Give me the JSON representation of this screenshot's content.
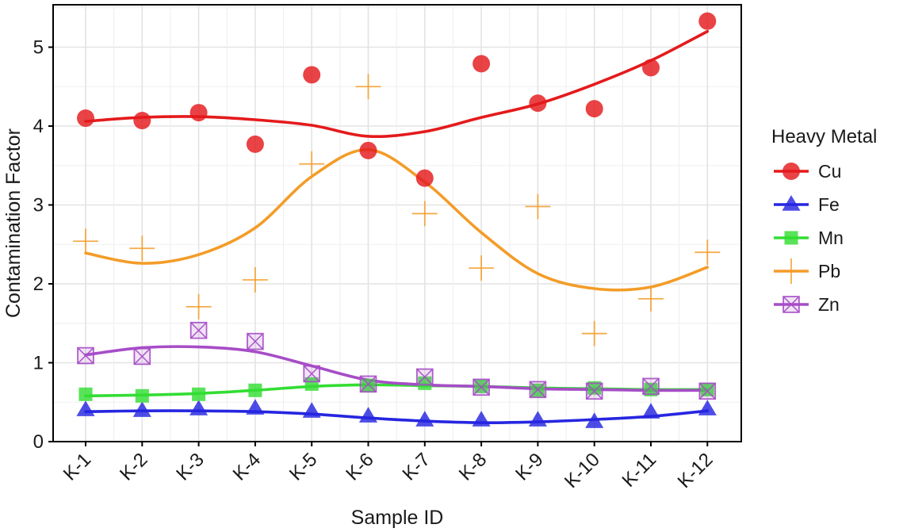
{
  "chart_data": {
    "type": "scatter",
    "title": "",
    "xlabel": "Sample ID",
    "ylabel": "Contamination Factor",
    "categories": [
      "K-1",
      "K-2",
      "K-3",
      "K-4",
      "K-5",
      "K-6",
      "K-7",
      "K-8",
      "K-9",
      "K-10",
      "K-11",
      "K-12"
    ],
    "ylim": [
      0,
      5.5
    ],
    "yticks": [
      0,
      1,
      2,
      3,
      4,
      5
    ],
    "grid": true,
    "legend_title": "Heavy Metal",
    "legend_position": "right",
    "series": [
      {
        "name": "Cu",
        "color": "#e41a1c",
        "marker": "circle",
        "values": [
          4.1,
          4.07,
          4.17,
          3.77,
          4.65,
          3.69,
          3.34,
          4.79,
          4.29,
          4.22,
          4.74,
          5.33
        ],
        "smooth": [
          4.06,
          4.11,
          4.12,
          4.08,
          4.01,
          3.87,
          3.93,
          4.11,
          4.28,
          4.53,
          4.83,
          5.2
        ]
      },
      {
        "name": "Fe",
        "color": "#2626e0",
        "marker": "triangle",
        "values": [
          0.4,
          0.39,
          0.41,
          0.42,
          0.38,
          0.32,
          0.27,
          0.27,
          0.27,
          0.25,
          0.37,
          0.41
        ],
        "smooth": [
          0.38,
          0.39,
          0.39,
          0.38,
          0.35,
          0.3,
          0.26,
          0.24,
          0.25,
          0.28,
          0.32,
          0.39
        ]
      },
      {
        "name": "Mn",
        "color": "#33dd33",
        "marker": "square",
        "values": [
          0.6,
          0.58,
          0.6,
          0.65,
          0.73,
          0.71,
          0.74,
          0.7,
          0.65,
          0.68,
          0.66,
          0.66
        ],
        "smooth": [
          0.58,
          0.59,
          0.61,
          0.65,
          0.7,
          0.72,
          0.71,
          0.7,
          0.68,
          0.67,
          0.66,
          0.66
        ]
      },
      {
        "name": "Pb",
        "color": "#f39c28",
        "marker": "plus",
        "values": [
          2.54,
          2.45,
          1.71,
          2.05,
          3.52,
          4.5,
          2.89,
          2.2,
          2.98,
          1.37,
          1.81,
          2.4
        ],
        "smooth": [
          2.39,
          2.26,
          2.37,
          2.71,
          3.36,
          3.7,
          3.29,
          2.65,
          2.13,
          1.94,
          1.96,
          2.21
        ]
      },
      {
        "name": "Zn",
        "color": "#a64dc7",
        "marker": "square-x",
        "values": [
          1.09,
          1.08,
          1.41,
          1.27,
          0.86,
          0.73,
          0.82,
          0.69,
          0.66,
          0.64,
          0.7,
          0.64
        ],
        "smooth": [
          1.1,
          1.19,
          1.2,
          1.14,
          0.96,
          0.78,
          0.72,
          0.7,
          0.67,
          0.66,
          0.65,
          0.65
        ]
      }
    ]
  }
}
